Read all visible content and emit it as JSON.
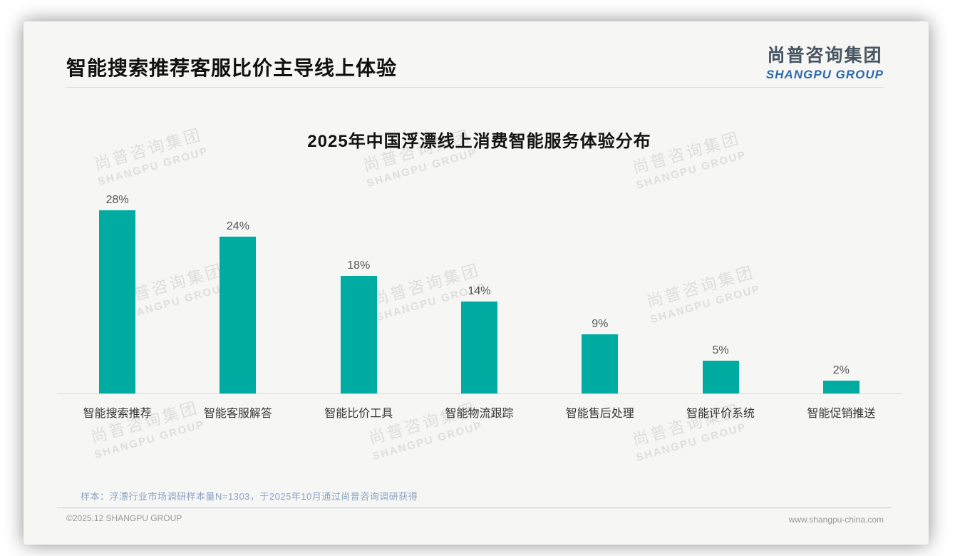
{
  "header": {
    "title": "智能搜索推荐客服比价主导线上体验",
    "logo_cn": "尚普咨询集团",
    "logo_en": "SHANGPU GROUP"
  },
  "watermark": {
    "cn": "尚普咨询集团",
    "en": "SHANGPU GROUP",
    "count": 9
  },
  "chart_data": {
    "type": "bar",
    "title": "2025年中国浮漂线上消费智能服务体验分布",
    "categories": [
      "智能搜索推荐",
      "智能客服解答",
      "智能比价工具",
      "智能物流跟踪",
      "智能售后处理",
      "智能评价系统",
      "智能促销推送"
    ],
    "values": [
      28,
      24,
      18,
      14,
      9,
      5,
      2
    ],
    "value_labels": [
      "28%",
      "24%",
      "18%",
      "14%",
      "9%",
      "5%",
      "2%"
    ],
    "unit": "%",
    "ylim": [
      0,
      30
    ],
    "bar_color": "#00aca2",
    "grid": false,
    "legend": false,
    "orientation": "vertical"
  },
  "footnote": "样本：浮漂行业市场调研样本量N=1303，于2025年10月通过尚普咨询调研获得",
  "footer": {
    "left": "©2025.12 SHANGPU GROUP",
    "right": "www.shangpu-china.com"
  }
}
